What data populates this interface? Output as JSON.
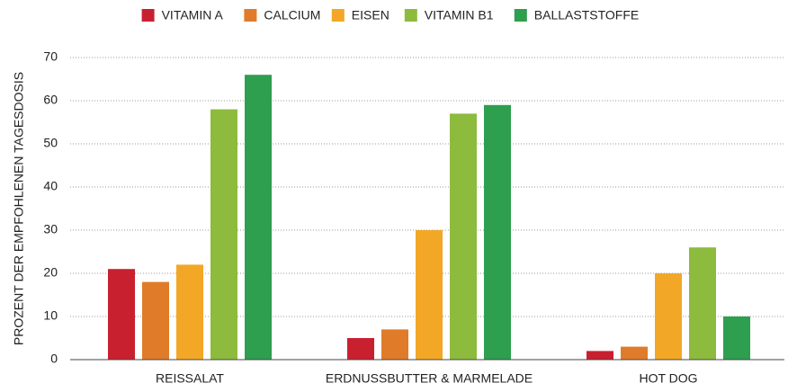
{
  "chart_data": {
    "type": "bar",
    "y_label": "PROZENT DER EMPFOHLENEN TAGESDOSIS",
    "categories": [
      "REISSALAT",
      "ERDNUSSBUTTER & MARMELADE",
      "HOT DOG"
    ],
    "series": [
      {
        "name": "VITAMIN A",
        "color": "#c8202f",
        "values": [
          21,
          5,
          2
        ]
      },
      {
        "name": "CALCIUM",
        "color": "#e07b2a",
        "values": [
          18,
          7,
          3
        ]
      },
      {
        "name": "EISEN",
        "color": "#f2a727",
        "values": [
          22,
          30,
          20
        ]
      },
      {
        "name": "VITAMIN B1",
        "color": "#8dbb3e",
        "values": [
          58,
          57,
          26
        ]
      },
      {
        "name": "BALLASTSTOFFE",
        "color": "#2e9e4f",
        "values": [
          66,
          59,
          10
        ]
      }
    ],
    "ylim": [
      0,
      70
    ],
    "yticks": [
      0,
      10,
      20,
      30,
      40,
      50,
      60,
      70
    ],
    "grid": true,
    "legend": "top"
  }
}
